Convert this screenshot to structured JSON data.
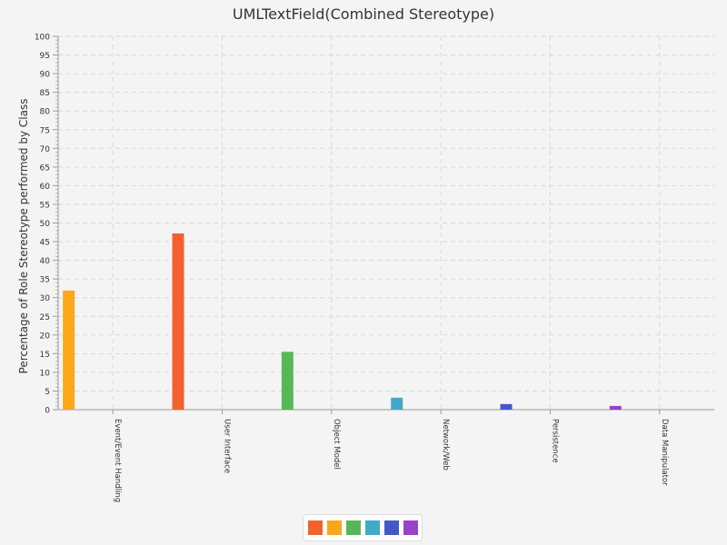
{
  "chart_data": {
    "type": "bar",
    "title": "UMLTextField(Combined Stereotype)",
    "xlabel": "",
    "ylabel": "Percentage of Role Stereotype performed by Class",
    "ylim": [
      0,
      100
    ],
    "yticks": [
      0,
      5,
      10,
      15,
      20,
      25,
      30,
      35,
      40,
      45,
      50,
      55,
      60,
      65,
      70,
      75,
      80,
      85,
      90,
      95,
      100
    ],
    "grid": true,
    "legend_position": "bottom",
    "categories": [
      "Event/Event Handling",
      "User Interface",
      "Object Model",
      "Network/Web",
      "Persistence",
      "Data Manipulator"
    ],
    "series": [
      {
        "color": "#f3622d",
        "values": [
          0,
          47.2,
          0,
          0,
          0,
          0
        ]
      },
      {
        "color": "#fba71b",
        "values": [
          31.9,
          0,
          0,
          0,
          0,
          0
        ]
      },
      {
        "color": "#57b757",
        "values": [
          0,
          0,
          15.5,
          0,
          0,
          0
        ]
      },
      {
        "color": "#41a9c9",
        "values": [
          0,
          0,
          0,
          3.2,
          0,
          0
        ]
      },
      {
        "color": "#4258c9",
        "values": [
          0,
          0,
          0,
          0,
          1.5,
          0
        ]
      },
      {
        "color": "#9a42c8",
        "values": [
          0,
          0,
          0,
          0,
          0,
          1.0
        ]
      }
    ]
  }
}
